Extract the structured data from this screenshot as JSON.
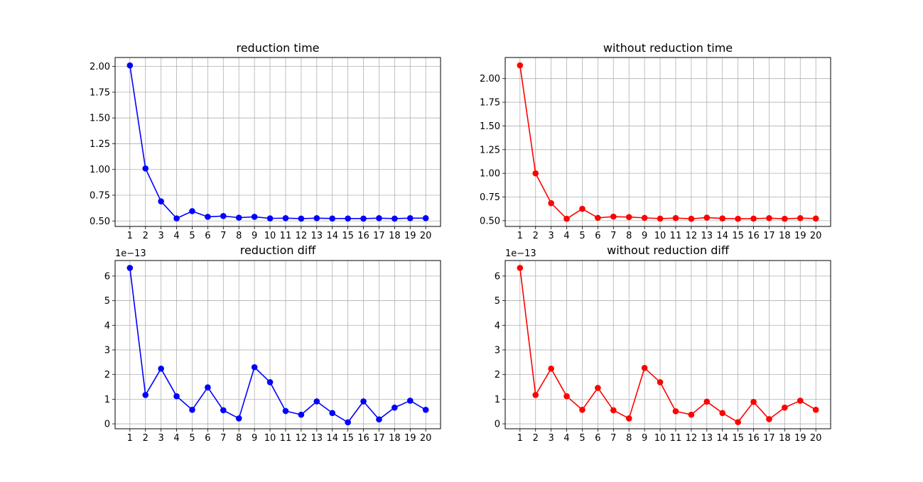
{
  "figure": {
    "background": "#ffffff"
  },
  "chart_data": [
    {
      "type": "line",
      "title": "reduction time",
      "xlabel": "",
      "ylabel": "",
      "color": "#0000ff",
      "marker": "circle",
      "grid": true,
      "x": [
        1,
        2,
        3,
        4,
        5,
        6,
        7,
        8,
        9,
        10,
        11,
        12,
        13,
        14,
        15,
        16,
        17,
        18,
        19,
        20
      ],
      "xticks": [
        "1",
        "2",
        "3",
        "4",
        "5",
        "6",
        "7",
        "8",
        "9",
        "10",
        "11",
        "12",
        "13",
        "14",
        "15",
        "16",
        "17",
        "18",
        "19",
        "20"
      ],
      "y": [
        2.01,
        1.01,
        0.69,
        0.525,
        0.595,
        0.54,
        0.548,
        0.532,
        0.54,
        0.525,
        0.527,
        0.523,
        0.527,
        0.524,
        0.524,
        0.523,
        0.527,
        0.523,
        0.527,
        0.527
      ],
      "yticks": [
        0.5,
        0.75,
        1.0,
        1.25,
        1.5,
        1.75,
        2.0
      ],
      "ytick_labels": [
        "0.50",
        "0.75",
        "1.00",
        "1.25",
        "1.50",
        "1.75",
        "2.00"
      ],
      "xlim": [
        0.05,
        20.95
      ],
      "ylim": [
        0.4467,
        2.0871
      ],
      "offset_text": ""
    },
    {
      "type": "line",
      "title": "without reduction time",
      "xlabel": "",
      "ylabel": "",
      "color": "#ff0000",
      "marker": "circle",
      "grid": true,
      "x": [
        1,
        2,
        3,
        4,
        5,
        6,
        7,
        8,
        9,
        10,
        11,
        12,
        13,
        14,
        15,
        16,
        17,
        18,
        19,
        20
      ],
      "xticks": [
        "1",
        "2",
        "3",
        "4",
        "5",
        "6",
        "7",
        "8",
        "9",
        "10",
        "11",
        "12",
        "13",
        "14",
        "15",
        "16",
        "17",
        "18",
        "19",
        "20"
      ],
      "y": [
        2.14,
        1.0,
        0.685,
        0.52,
        0.625,
        0.53,
        0.543,
        0.538,
        0.53,
        0.522,
        0.528,
        0.52,
        0.532,
        0.524,
        0.52,
        0.522,
        0.527,
        0.52,
        0.527,
        0.523
      ],
      "yticks": [
        0.5,
        0.75,
        1.0,
        1.25,
        1.5,
        1.75,
        2.0
      ],
      "ytick_labels": [
        "0.50",
        "0.75",
        "1.00",
        "1.25",
        "1.50",
        "1.75",
        "2.00"
      ],
      "xlim": [
        0.05,
        20.95
      ],
      "ylim": [
        0.4391,
        2.2226
      ],
      "offset_text": ""
    },
    {
      "type": "line",
      "title": "reduction diff",
      "xlabel": "",
      "ylabel": "",
      "color": "#0000ff",
      "marker": "circle",
      "grid": true,
      "x": [
        1,
        2,
        3,
        4,
        5,
        6,
        7,
        8,
        9,
        10,
        11,
        12,
        13,
        14,
        15,
        16,
        17,
        18,
        19,
        20
      ],
      "xticks": [
        "1",
        "2",
        "3",
        "4",
        "5",
        "6",
        "7",
        "8",
        "9",
        "10",
        "11",
        "12",
        "13",
        "14",
        "15",
        "16",
        "17",
        "18",
        "19",
        "20"
      ],
      "y": [
        6.33,
        1.17,
        2.24,
        1.12,
        0.57,
        1.48,
        0.55,
        0.22,
        2.3,
        1.69,
        0.52,
        0.37,
        0.91,
        0.44,
        0.06,
        0.91,
        0.18,
        0.66,
        0.94,
        0.57
      ],
      "yticks": [
        0,
        1,
        2,
        3,
        4,
        5,
        6
      ],
      "ytick_labels": [
        "0",
        "1",
        "2",
        "3",
        "4",
        "5",
        "6"
      ],
      "xlim": [
        0.05,
        20.95
      ],
      "ylim": [
        -0.2,
        6.63
      ],
      "offset_text": "1e−13"
    },
    {
      "type": "line",
      "title": "without reduction diff",
      "xlabel": "",
      "ylabel": "",
      "color": "#ff0000",
      "marker": "circle",
      "grid": true,
      "x": [
        1,
        2,
        3,
        4,
        5,
        6,
        7,
        8,
        9,
        10,
        11,
        12,
        13,
        14,
        15,
        16,
        17,
        18,
        19,
        20
      ],
      "xticks": [
        "1",
        "2",
        "3",
        "4",
        "5",
        "6",
        "7",
        "8",
        "9",
        "10",
        "11",
        "12",
        "13",
        "14",
        "15",
        "16",
        "17",
        "18",
        "19",
        "20"
      ],
      "y": [
        6.33,
        1.17,
        2.24,
        1.12,
        0.57,
        1.46,
        0.55,
        0.22,
        2.27,
        1.69,
        0.51,
        0.37,
        0.9,
        0.44,
        0.07,
        0.89,
        0.19,
        0.66,
        0.94,
        0.57
      ],
      "yticks": [
        0,
        1,
        2,
        3,
        4,
        5,
        6
      ],
      "ytick_labels": [
        "0",
        "1",
        "2",
        "3",
        "4",
        "5",
        "6"
      ],
      "xlim": [
        0.05,
        20.95
      ],
      "ylim": [
        -0.2,
        6.63
      ],
      "offset_text": "1e−13"
    }
  ]
}
